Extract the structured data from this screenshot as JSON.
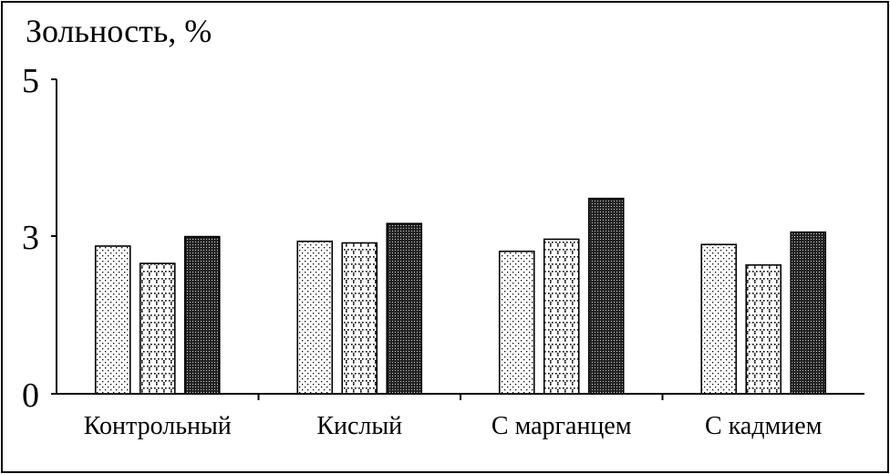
{
  "chart_data": {
    "type": "bar",
    "ylabel": "Зольность, %",
    "categories": [
      "Контрольный",
      "Кислый",
      "С марганцем",
      "С кадмием"
    ],
    "yticks": [
      0,
      3,
      5
    ],
    "series": [
      {
        "values": [
          2.81,
          2.9,
          2.71,
          2.84
        ],
        "pattern": "dots"
      },
      {
        "values": [
          2.48,
          2.87,
          2.94,
          2.45
        ],
        "pattern": "checker"
      },
      {
        "values": [
          2.99,
          3.16,
          3.48,
          3.05
        ],
        "pattern": "dark-mesh"
      }
    ],
    "grid": false,
    "legend": "none"
  }
}
